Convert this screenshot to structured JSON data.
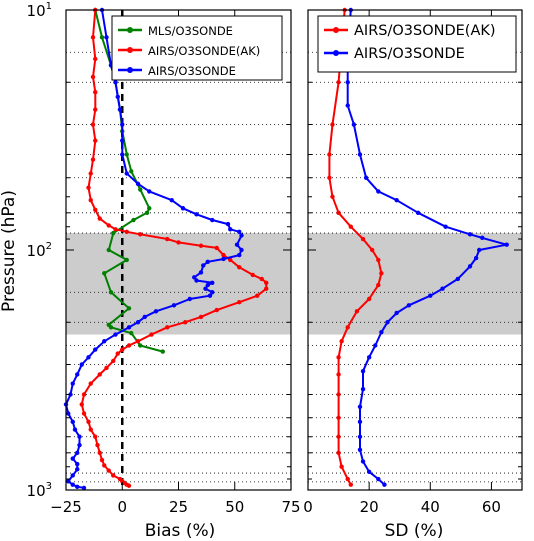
{
  "figure": {
    "ylabel": "Pressure (hPa)",
    "yticks": [
      {
        "value": 10,
        "base": "10",
        "exp": "1"
      },
      {
        "value": 100,
        "base": "10",
        "exp": "2"
      },
      {
        "value": 1000,
        "base": "10",
        "exp": "3"
      }
    ],
    "gridlines_hpa": [
      15,
      20,
      30,
      40,
      50,
      70,
      85,
      150,
      200,
      250,
      300,
      400,
      500,
      600,
      700,
      850,
      925
    ],
    "shaded_band_hpa": [
      85,
      225
    ]
  },
  "chart_data": [
    {
      "type": "line",
      "panel": "left",
      "xlabel": "Bias (%)",
      "xlim": [
        -25,
        75
      ],
      "xticks": [
        -25,
        0,
        25,
        50,
        75
      ],
      "ylim": [
        10,
        1000
      ],
      "yscale": "log",
      "yaxis_inverted": true,
      "grid": "horizontal dotted",
      "legend_position": "top-right",
      "zero_line": 0,
      "series": [
        {
          "name": "MLS/O3SONDE",
          "color": "#008000",
          "points": [
            [
              -12,
              10
            ],
            [
              -9,
              13
            ],
            [
              -5,
              17
            ],
            [
              -3,
              20
            ],
            [
              -1,
              26
            ],
            [
              0,
              32
            ],
            [
              2,
              40
            ],
            [
              4,
              47
            ],
            [
              8,
              56
            ],
            [
              12,
              67
            ],
            [
              11,
              70
            ],
            [
              5,
              75
            ],
            [
              -4,
              85
            ],
            [
              -6,
              100
            ],
            [
              2,
              110
            ],
            [
              -8,
              125
            ],
            [
              -5,
              150
            ],
            [
              3,
              175
            ],
            [
              -6,
              205
            ],
            [
              -5,
              210
            ],
            [
              4,
              222
            ],
            [
              8,
              250
            ],
            [
              18,
              265
            ]
          ]
        },
        {
          "name": "AIRS/O3SONDE(AK)",
          "color": "#ff0000",
          "points": [
            [
              -12,
              10
            ],
            [
              -13,
              13
            ],
            [
              -12,
              16
            ],
            [
              -13,
              19
            ],
            [
              -12,
              22
            ],
            [
              -12,
              26
            ],
            [
              -13,
              30
            ],
            [
              -12,
              35
            ],
            [
              -13,
              42
            ],
            [
              -14,
              48
            ],
            [
              -15,
              55
            ],
            [
              -14,
              62
            ],
            [
              -12,
              68
            ],
            [
              -10,
              74
            ],
            [
              -6,
              79
            ],
            [
              -3,
              82
            ],
            [
              2,
              84
            ],
            [
              8,
              86
            ],
            [
              20,
              90
            ],
            [
              25,
              93
            ],
            [
              35,
              96
            ],
            [
              42,
              98
            ],
            [
              45,
              105
            ],
            [
              48,
              110
            ],
            [
              52,
              118
            ],
            [
              58,
              127
            ],
            [
              62,
              132
            ],
            [
              64,
              137
            ],
            [
              64,
              145
            ],
            [
              60,
              155
            ],
            [
              52,
              165
            ],
            [
              42,
              178
            ],
            [
              35,
              190
            ],
            [
              28,
              200
            ],
            [
              20,
              210
            ],
            [
              13,
              225
            ],
            [
              7,
              240
            ],
            [
              3,
              250
            ],
            [
              0,
              260
            ],
            [
              -2,
              270
            ],
            [
              -4,
              290
            ],
            [
              -7,
              310
            ],
            [
              -10,
              330
            ],
            [
              -14,
              360
            ],
            [
              -17,
              400
            ],
            [
              -18,
              440
            ],
            [
              -17,
              480
            ],
            [
              -15,
              520
            ],
            [
              -14,
              560
            ],
            [
              -12,
              600
            ],
            [
              -11,
              650
            ],
            [
              -10,
              700
            ],
            [
              -9,
              750
            ],
            [
              -8,
              790
            ],
            [
              -6,
              830
            ],
            [
              -4,
              870
            ],
            [
              -1,
              900
            ],
            [
              0,
              920
            ],
            [
              1,
              935
            ],
            [
              2,
              950
            ],
            [
              3,
              960
            ]
          ]
        },
        {
          "name": "AIRS/O3SONDE",
          "color": "#0000ff",
          "points": [
            [
              -9,
              10
            ],
            [
              -7,
              13
            ],
            [
              -5,
              17
            ],
            [
              -3,
              20
            ],
            [
              -2,
              23
            ],
            [
              -1,
              26
            ],
            [
              0,
              30
            ],
            [
              0,
              35
            ],
            [
              0,
              40
            ],
            [
              2,
              48
            ],
            [
              7,
              53
            ],
            [
              12,
              57
            ],
            [
              22,
              62
            ],
            [
              27,
              67
            ],
            [
              33,
              71
            ],
            [
              40,
              75
            ],
            [
              47,
              78
            ],
            [
              48,
              82
            ],
            [
              52,
              84
            ],
            [
              53,
              87
            ],
            [
              51,
              95
            ],
            [
              53,
              100
            ],
            [
              52,
              105
            ],
            [
              45,
              109
            ],
            [
              38,
              112
            ],
            [
              36,
              116
            ],
            [
              35,
              124
            ],
            [
              32,
              130
            ],
            [
              33,
              134
            ],
            [
              40,
              137
            ],
            [
              38,
              140
            ],
            [
              37,
              145
            ],
            [
              40,
              150
            ],
            [
              39,
              155
            ],
            [
              30,
              160
            ],
            [
              23,
              170
            ],
            [
              15,
              180
            ],
            [
              10,
              190
            ],
            [
              7,
              200
            ],
            [
              3,
              210
            ],
            [
              -3,
              225
            ],
            [
              -8,
              240
            ],
            [
              -12,
              260
            ],
            [
              -15,
              280
            ],
            [
              -18,
              300
            ],
            [
              -20,
              330
            ],
            [
              -22,
              360
            ],
            [
              -23,
              400
            ],
            [
              -25,
              440
            ],
            [
              -24,
              480
            ],
            [
              -22,
              520
            ],
            [
              -21,
              560
            ],
            [
              -19,
              600
            ],
            [
              -19,
              650
            ],
            [
              -20,
              700
            ],
            [
              -22,
              740
            ],
            [
              -20,
              780
            ],
            [
              -20,
              820
            ],
            [
              -22,
              870
            ],
            [
              -24,
              920
            ],
            [
              -22,
              950
            ],
            [
              -20,
              970
            ],
            [
              -17,
              980
            ]
          ]
        }
      ]
    },
    {
      "type": "line",
      "panel": "right",
      "xlabel": "SD (%)",
      "xlim": [
        0,
        70
      ],
      "xticks": [
        0,
        20,
        40,
        60
      ],
      "ylim": [
        10,
        1000
      ],
      "yscale": "log",
      "yaxis_inverted": true,
      "grid": "horizontal dotted",
      "legend_position": "top-right",
      "series": [
        {
          "name": "AIRS/O3SONDE(AK)",
          "color": "#ff0000",
          "points": [
            [
              12,
              10
            ],
            [
              11,
              14
            ],
            [
              10,
              20
            ],
            [
              8,
              30
            ],
            [
              7,
              40
            ],
            [
              7,
              50
            ],
            [
              8,
              60
            ],
            [
              10,
              70
            ],
            [
              14,
              80
            ],
            [
              18,
              90
            ],
            [
              21,
              100
            ],
            [
              23,
              110
            ],
            [
              24,
              125
            ],
            [
              23,
              140
            ],
            [
              20,
              160
            ],
            [
              16,
              180
            ],
            [
              13,
              210
            ],
            [
              11,
              240
            ],
            [
              10,
              280
            ],
            [
              10,
              330
            ],
            [
              10,
              400
            ],
            [
              10,
              500
            ],
            [
              10,
              600
            ],
            [
              10,
              700
            ],
            [
              11,
              800
            ],
            [
              13,
              900
            ],
            [
              14,
              950
            ]
          ]
        },
        {
          "name": "AIRS/O3SONDE",
          "color": "#0000ff",
          "points": [
            [
              14,
              10
            ],
            [
              13,
              15
            ],
            [
              13,
              20
            ],
            [
              13,
              25
            ],
            [
              15,
              30
            ],
            [
              17,
              40
            ],
            [
              19,
              50
            ],
            [
              23,
              57
            ],
            [
              29,
              62
            ],
            [
              36,
              70
            ],
            [
              45,
              80
            ],
            [
              53,
              86
            ],
            [
              57,
              89
            ],
            [
              65,
              95
            ],
            [
              56,
              100
            ],
            [
              55,
              108
            ],
            [
              53,
              117
            ],
            [
              49,
              132
            ],
            [
              44,
              145
            ],
            [
              40,
              155
            ],
            [
              33,
              170
            ],
            [
              29,
              183
            ],
            [
              26,
              200
            ],
            [
              24,
              220
            ],
            [
              22,
              250
            ],
            [
              20,
              280
            ],
            [
              18,
              320
            ],
            [
              18,
              380
            ],
            [
              17,
              450
            ],
            [
              17,
              520
            ],
            [
              17,
              600
            ],
            [
              17,
              680
            ],
            [
              18,
              760
            ],
            [
              20,
              840
            ],
            [
              23,
              900
            ],
            [
              25,
              950
            ]
          ]
        }
      ]
    }
  ]
}
